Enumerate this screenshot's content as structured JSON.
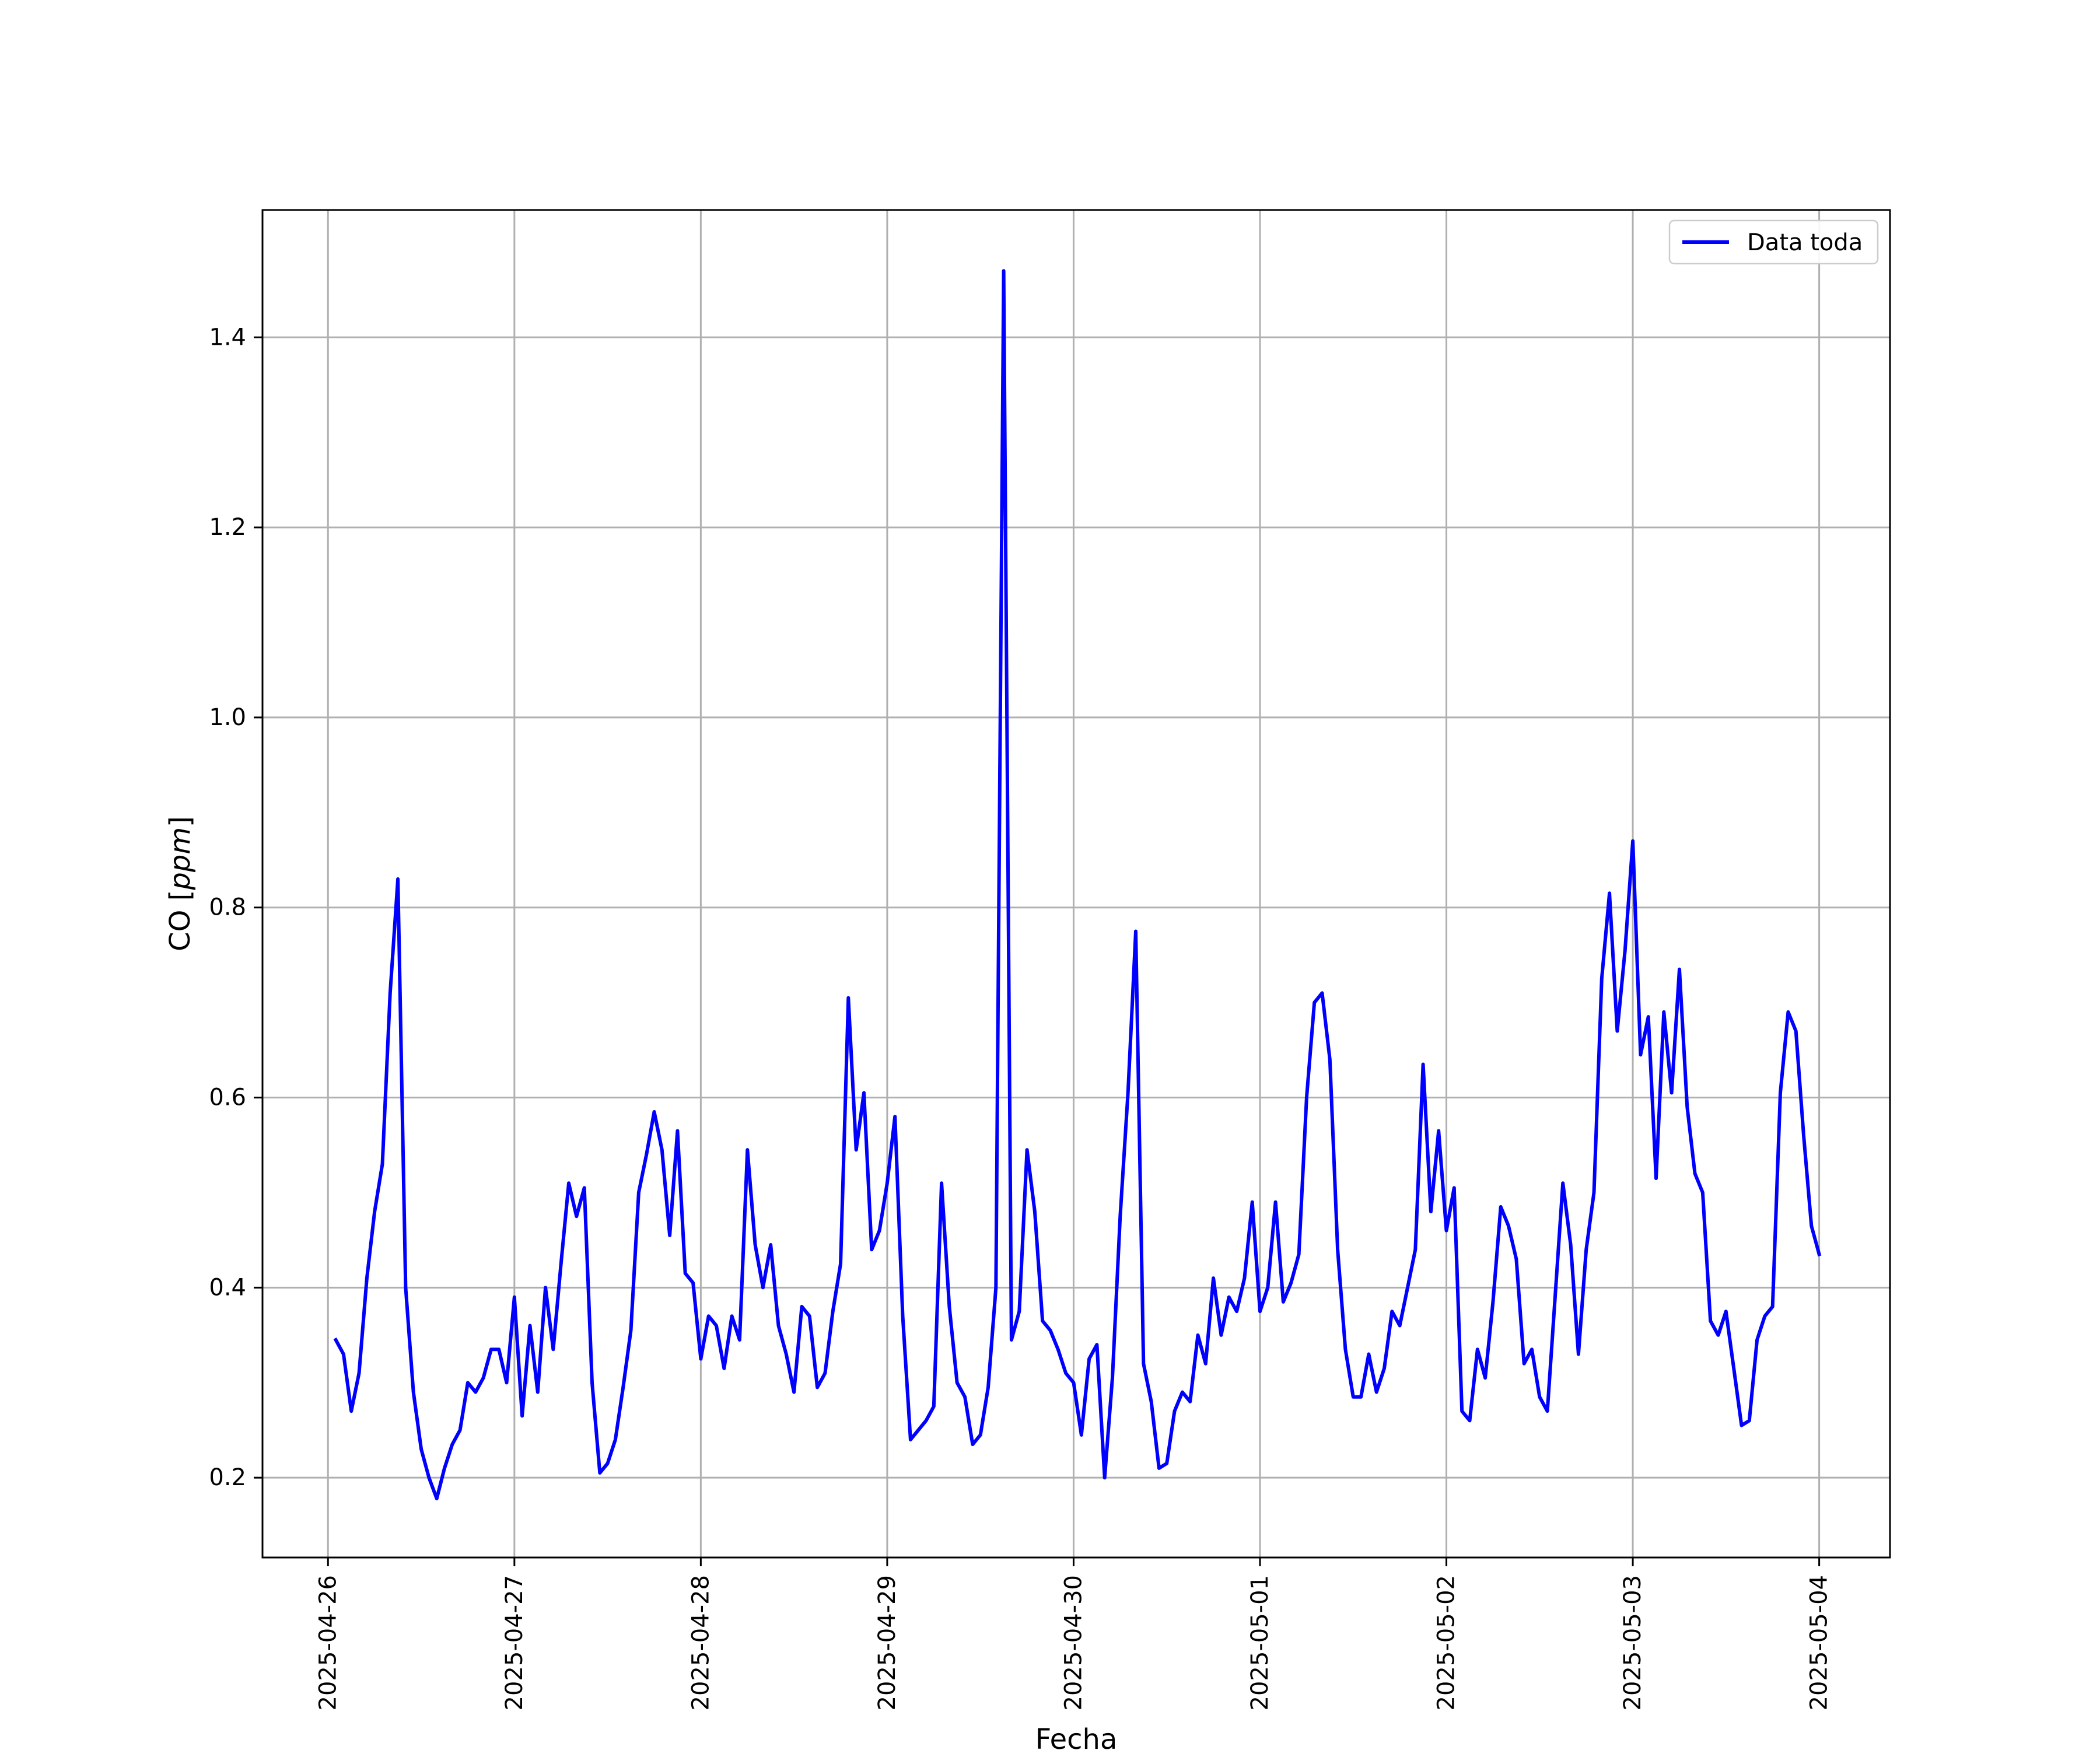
{
  "chart_data": {
    "type": "line",
    "title": "",
    "xlabel": "Fecha",
    "ylabel": "CO [ppm]",
    "ylabel_parts": {
      "plain": "CO ",
      "open": "[",
      "unit": "ppm",
      "close": "]"
    },
    "x_ticks": [
      "2025-04-26",
      "2025-04-27",
      "2025-04-28",
      "2025-04-29",
      "2025-04-30",
      "2025-05-01",
      "2025-05-02",
      "2025-05-03",
      "2025-05-04"
    ],
    "y_ticks": [
      "0.2",
      "0.4",
      "0.6",
      "0.8",
      "1.0",
      "1.2",
      "1.4"
    ],
    "xlim": [
      "2025-04-25T15:34",
      "2025-05-04T09:07"
    ],
    "ylim": [
      0.116,
      1.534
    ],
    "grid": true,
    "legend_position": "top-right",
    "colors": {
      "series": "#0000ff",
      "grid": "#b0b0b0",
      "axes": "#000000"
    },
    "series": [
      {
        "name": "Data toda",
        "x": [
          "2025-04-26T01:00",
          "2025-04-26T02:00",
          "2025-04-26T03:00",
          "2025-04-26T04:00",
          "2025-04-26T05:00",
          "2025-04-26T06:00",
          "2025-04-26T07:00",
          "2025-04-26T08:00",
          "2025-04-26T09:00",
          "2025-04-26T10:00",
          "2025-04-26T11:00",
          "2025-04-26T12:00",
          "2025-04-26T13:00",
          "2025-04-26T14:00",
          "2025-04-26T15:00",
          "2025-04-26T16:00",
          "2025-04-26T17:00",
          "2025-04-26T18:00",
          "2025-04-26T19:00",
          "2025-04-26T20:00",
          "2025-04-26T21:00",
          "2025-04-26T22:00",
          "2025-04-26T23:00",
          "2025-04-27T00:00",
          "2025-04-27T01:00",
          "2025-04-27T02:00",
          "2025-04-27T03:00",
          "2025-04-27T04:00",
          "2025-04-27T05:00",
          "2025-04-27T06:00",
          "2025-04-27T07:00",
          "2025-04-27T08:00",
          "2025-04-27T09:00",
          "2025-04-27T10:00",
          "2025-04-27T11:00",
          "2025-04-27T12:00",
          "2025-04-27T13:00",
          "2025-04-27T14:00",
          "2025-04-27T15:00",
          "2025-04-27T16:00",
          "2025-04-27T17:00",
          "2025-04-27T18:00",
          "2025-04-27T19:00",
          "2025-04-27T20:00",
          "2025-04-27T21:00",
          "2025-04-27T22:00",
          "2025-04-27T23:00",
          "2025-04-28T00:00",
          "2025-04-28T01:00",
          "2025-04-28T02:00",
          "2025-04-28T03:00",
          "2025-04-28T04:00",
          "2025-04-28T05:00",
          "2025-04-28T06:00",
          "2025-04-28T07:00",
          "2025-04-28T08:00",
          "2025-04-28T09:00",
          "2025-04-28T10:00",
          "2025-04-28T11:00",
          "2025-04-28T12:00",
          "2025-04-28T13:00",
          "2025-04-28T14:00",
          "2025-04-28T15:00",
          "2025-04-28T16:00",
          "2025-04-28T17:00",
          "2025-04-28T18:00",
          "2025-04-28T19:00",
          "2025-04-28T20:00",
          "2025-04-28T21:00",
          "2025-04-28T22:00",
          "2025-04-28T23:00",
          "2025-04-29T00:00",
          "2025-04-29T01:00",
          "2025-04-29T02:00",
          "2025-04-29T03:00",
          "2025-04-29T04:00",
          "2025-04-29T05:00",
          "2025-04-29T06:00",
          "2025-04-29T07:00",
          "2025-04-29T08:00",
          "2025-04-29T09:00",
          "2025-04-29T10:00",
          "2025-04-29T11:00",
          "2025-04-29T12:00",
          "2025-04-29T13:00",
          "2025-04-29T14:00",
          "2025-04-29T15:00",
          "2025-04-29T16:00",
          "2025-04-29T17:00",
          "2025-04-29T18:00",
          "2025-04-29T19:00",
          "2025-04-29T20:00",
          "2025-04-29T21:00",
          "2025-04-29T22:00",
          "2025-04-29T23:00",
          "2025-04-30T00:00",
          "2025-04-30T01:00",
          "2025-04-30T02:00",
          "2025-04-30T03:00",
          "2025-04-30T04:00",
          "2025-04-30T05:00",
          "2025-04-30T06:00",
          "2025-04-30T07:00",
          "2025-04-30T08:00",
          "2025-04-30T09:00",
          "2025-04-30T10:00",
          "2025-04-30T11:00",
          "2025-04-30T12:00",
          "2025-04-30T13:00",
          "2025-04-30T14:00",
          "2025-04-30T15:00",
          "2025-04-30T16:00",
          "2025-04-30T17:00",
          "2025-04-30T18:00",
          "2025-04-30T19:00",
          "2025-04-30T20:00",
          "2025-04-30T21:00",
          "2025-04-30T22:00",
          "2025-04-30T23:00",
          "2025-05-01T00:00",
          "2025-05-01T01:00",
          "2025-05-01T02:00",
          "2025-05-01T03:00",
          "2025-05-01T04:00",
          "2025-05-01T05:00",
          "2025-05-01T06:00",
          "2025-05-01T07:00",
          "2025-05-01T08:00",
          "2025-05-01T09:00",
          "2025-05-01T10:00",
          "2025-05-01T11:00",
          "2025-05-01T12:00",
          "2025-05-01T13:00",
          "2025-05-01T14:00",
          "2025-05-01T15:00",
          "2025-05-01T16:00",
          "2025-05-01T17:00",
          "2025-05-01T18:00",
          "2025-05-01T19:00",
          "2025-05-01T20:00",
          "2025-05-01T21:00",
          "2025-05-01T22:00",
          "2025-05-01T23:00",
          "2025-05-02T00:00",
          "2025-05-02T01:00",
          "2025-05-02T02:00",
          "2025-05-02T03:00",
          "2025-05-02T04:00",
          "2025-05-02T05:00",
          "2025-05-02T06:00",
          "2025-05-02T07:00",
          "2025-05-02T08:00",
          "2025-05-02T09:00",
          "2025-05-02T10:00",
          "2025-05-02T11:00",
          "2025-05-02T12:00",
          "2025-05-02T13:00",
          "2025-05-02T14:00",
          "2025-05-02T15:00",
          "2025-05-02T16:00",
          "2025-05-02T17:00",
          "2025-05-02T18:00",
          "2025-05-02T19:00",
          "2025-05-02T20:00",
          "2025-05-02T21:00",
          "2025-05-02T22:00",
          "2025-05-02T23:00",
          "2025-05-03T00:00",
          "2025-05-03T01:00",
          "2025-05-03T02:00",
          "2025-05-03T03:00",
          "2025-05-03T04:00",
          "2025-05-03T05:00",
          "2025-05-03T06:00",
          "2025-05-03T07:00",
          "2025-05-03T08:00",
          "2025-05-03T09:00",
          "2025-05-03T10:00",
          "2025-05-03T11:00",
          "2025-05-03T12:00",
          "2025-05-03T13:00",
          "2025-05-03T14:00",
          "2025-05-03T15:00",
          "2025-05-03T16:00",
          "2025-05-03T17:00",
          "2025-05-03T18:00",
          "2025-05-03T19:00",
          "2025-05-03T20:00",
          "2025-05-03T21:00",
          "2025-05-03T22:00",
          "2025-05-03T23:00",
          "2025-05-04T00:00"
        ],
        "y": [
          0.345,
          0.33,
          0.27,
          0.31,
          0.41,
          0.48,
          0.53,
          0.71,
          0.83,
          0.4,
          0.29,
          0.23,
          0.2,
          0.178,
          0.21,
          0.235,
          0.25,
          0.3,
          0.29,
          0.305,
          0.335,
          0.335,
          0.3,
          0.39,
          0.265,
          0.36,
          0.29,
          0.4,
          0.335,
          0.425,
          0.51,
          0.475,
          0.505,
          0.3,
          0.205,
          0.215,
          0.24,
          0.295,
          0.355,
          0.5,
          0.54,
          0.585,
          0.545,
          0.455,
          0.565,
          0.415,
          0.405,
          0.325,
          0.37,
          0.36,
          0.315,
          0.37,
          0.345,
          0.545,
          0.445,
          0.4,
          0.445,
          0.36,
          0.33,
          0.29,
          0.38,
          0.37,
          0.295,
          0.31,
          0.375,
          0.425,
          0.705,
          0.545,
          0.605,
          0.44,
          0.46,
          0.51,
          0.58,
          0.37,
          0.24,
          0.25,
          0.26,
          0.275,
          0.51,
          0.38,
          0.3,
          0.285,
          0.235,
          0.245,
          0.295,
          0.4,
          1.47,
          0.345,
          0.375,
          0.545,
          0.48,
          0.365,
          0.355,
          0.335,
          0.31,
          0.3,
          0.245,
          0.325,
          0.34,
          0.2,
          0.305,
          0.475,
          0.605,
          0.775,
          0.32,
          0.28,
          0.21,
          0.215,
          0.27,
          0.29,
          0.28,
          0.35,
          0.32,
          0.41,
          0.35,
          0.39,
          0.375,
          0.41,
          0.49,
          0.375,
          0.4,
          0.49,
          0.385,
          0.405,
          0.435,
          0.6,
          0.7,
          0.71,
          0.64,
          0.44,
          0.335,
          0.285,
          0.285,
          0.33,
          0.29,
          0.315,
          0.375,
          0.36,
          0.4,
          0.44,
          0.635,
          0.48,
          0.565,
          0.46,
          0.505,
          0.27,
          0.26,
          0.335,
          0.305,
          0.385,
          0.485,
          0.465,
          0.43,
          0.32,
          0.335,
          0.285,
          0.27,
          0.39,
          0.51,
          0.445,
          0.33,
          0.44,
          0.5,
          0.725,
          0.815,
          0.67,
          0.755,
          0.87,
          0.645,
          0.685,
          0.515,
          0.69,
          0.605,
          0.735,
          0.59,
          0.52,
          0.5,
          0.365,
          0.35,
          0.375,
          0.315,
          0.255,
          0.26,
          0.345,
          0.37,
          0.38,
          0.605,
          0.69,
          0.67,
          0.56,
          0.465,
          0.435
        ]
      }
    ]
  }
}
